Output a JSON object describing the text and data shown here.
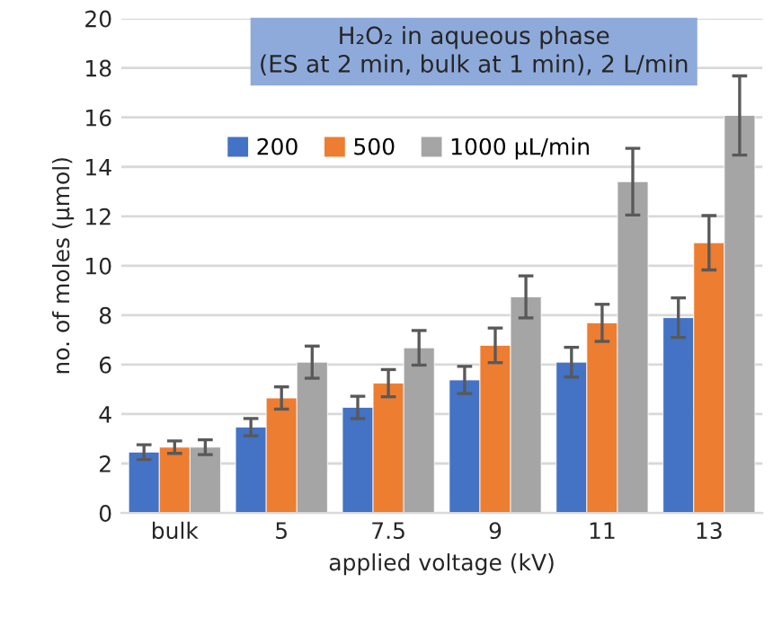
{
  "chart_data": {
    "type": "bar",
    "title": "H₂O₂ in aqueous phase\n(ES at 2 min, bulk at 1 min), 2 L/min",
    "xlabel": "applied voltage (kV)",
    "ylabel": "no. of moles (µmol)",
    "categories": [
      "bulk",
      "5",
      "7.5",
      "9",
      "11",
      "13"
    ],
    "series": [
      {
        "name": "200",
        "color": "#4472c4",
        "values": [
          2.46,
          3.47,
          4.27,
          5.38,
          6.1,
          7.9
        ],
        "errors": [
          0.3,
          0.35,
          0.45,
          0.55,
          0.6,
          0.8
        ]
      },
      {
        "name": "500",
        "color": "#ed7d31",
        "values": [
          2.66,
          4.65,
          5.25,
          6.78,
          7.69,
          10.93
        ],
        "errors": [
          0.25,
          0.45,
          0.55,
          0.7,
          0.75,
          1.1
        ]
      },
      {
        "name": "1000 µL/min",
        "color": "#a5a5a5",
        "values": [
          2.66,
          6.1,
          6.68,
          8.74,
          13.4,
          16.08
        ],
        "errors": [
          0.3,
          0.65,
          0.7,
          0.85,
          1.35,
          1.6
        ]
      }
    ],
    "ylim": [
      0,
      20
    ],
    "yticks": [
      0,
      2,
      4,
      6,
      8,
      10,
      12,
      14,
      16,
      18,
      20
    ],
    "grid": "y",
    "legend": "top"
  }
}
